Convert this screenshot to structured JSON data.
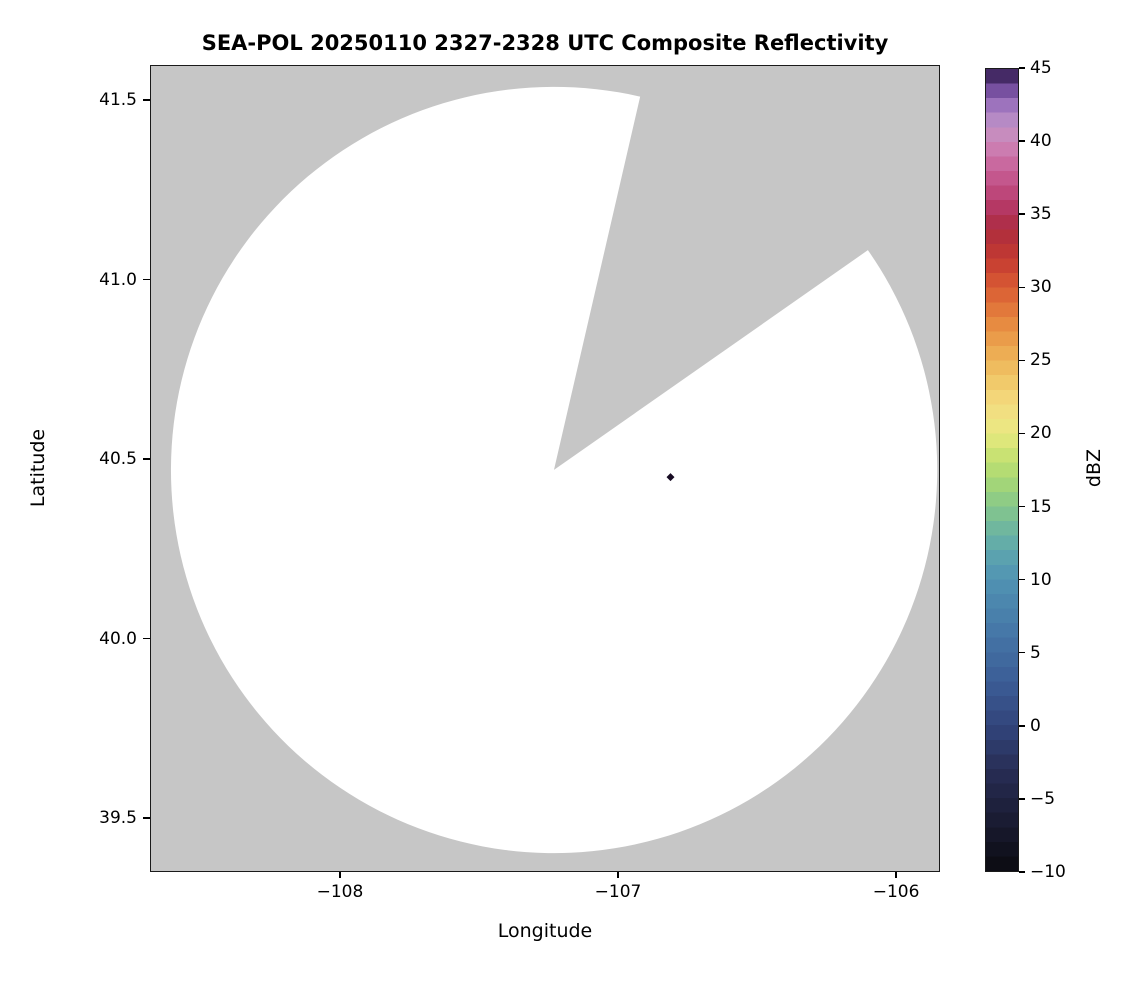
{
  "figure": {
    "background": "#ffffff"
  },
  "chart_data": {
    "type": "heatmap",
    "title": "SEA-POL 20250110 2327-2328 UTC Composite Reflectivity",
    "xlabel": "Longitude",
    "ylabel": "Latitude",
    "xlim": [
      -108.683,
      -105.842
    ],
    "ylim": [
      39.35,
      41.598
    ],
    "grid": false,
    "panel_background": "#c6c6c6",
    "xticks": [
      {
        "v": -108,
        "label": "−108"
      },
      {
        "v": -107,
        "label": "−107"
      },
      {
        "v": -106,
        "label": "−106"
      }
    ],
    "yticks": [
      {
        "v": 39.5,
        "label": "39.5"
      },
      {
        "v": 40.0,
        "label": "40.0"
      },
      {
        "v": 40.5,
        "label": "40.5"
      },
      {
        "v": 41.0,
        "label": "41.0"
      },
      {
        "v": 41.5,
        "label": "41.5"
      }
    ],
    "radar": {
      "center_lon": -107.23,
      "center_lat": 40.47,
      "range_deg_lat": 1.07,
      "blocked_sector_azimuth_deg": [
        13,
        55
      ],
      "coverage_fill": "#ffffff"
    },
    "markers": [
      {
        "lon": -106.81,
        "lat": 40.45,
        "shape": "diamond",
        "color": "#170b23"
      }
    ],
    "colorbar": {
      "label": "dBZ",
      "min": -10,
      "max": 45,
      "ticks": [
        {
          "v": 45,
          "label": "45"
        },
        {
          "v": 40,
          "label": "40"
        },
        {
          "v": 35,
          "label": "35"
        },
        {
          "v": 30,
          "label": "30"
        },
        {
          "v": 25,
          "label": "25"
        },
        {
          "v": 20,
          "label": "20"
        },
        {
          "v": 15,
          "label": "15"
        },
        {
          "v": 10,
          "label": "10"
        },
        {
          "v": 5,
          "label": "5"
        },
        {
          "v": 0,
          "label": "0"
        },
        {
          "v": -5,
          "label": "−5"
        },
        {
          "v": -10,
          "label": "−10"
        }
      ],
      "stops": [
        {
          "v": -10,
          "c": "#0b0a10"
        },
        {
          "v": -6,
          "c": "#1c1e38"
        },
        {
          "v": -3,
          "c": "#282e56"
        },
        {
          "v": 0,
          "c": "#32457c"
        },
        {
          "v": 3,
          "c": "#3c5d96"
        },
        {
          "v": 6,
          "c": "#4474a6"
        },
        {
          "v": 9,
          "c": "#4d8bb0"
        },
        {
          "v": 11,
          "c": "#569cb2"
        },
        {
          "v": 13,
          "c": "#68b2a4"
        },
        {
          "v": 15,
          "c": "#86c78b"
        },
        {
          "v": 17,
          "c": "#abd973"
        },
        {
          "v": 19,
          "c": "#d3e573"
        },
        {
          "v": 20,
          "c": "#e9e982"
        },
        {
          "v": 22,
          "c": "#f4dc80"
        },
        {
          "v": 24,
          "c": "#f0c464"
        },
        {
          "v": 26,
          "c": "#eca54e"
        },
        {
          "v": 28,
          "c": "#e5823d"
        },
        {
          "v": 30,
          "c": "#d95b33"
        },
        {
          "v": 32,
          "c": "#c43a31"
        },
        {
          "v": 34,
          "c": "#ad2d3e"
        },
        {
          "v": 35,
          "c": "#b03057"
        },
        {
          "v": 36,
          "c": "#ba3f70"
        },
        {
          "v": 38,
          "c": "#c75f97"
        },
        {
          "v": 40,
          "c": "#cd85b8"
        },
        {
          "v": 41,
          "c": "#c192c4"
        },
        {
          "v": 42,
          "c": "#ab82c6"
        },
        {
          "v": 43,
          "c": "#8f63b3"
        },
        {
          "v": 44,
          "c": "#5f3c8c"
        },
        {
          "v": 45,
          "c": "#2b1740"
        }
      ]
    }
  }
}
